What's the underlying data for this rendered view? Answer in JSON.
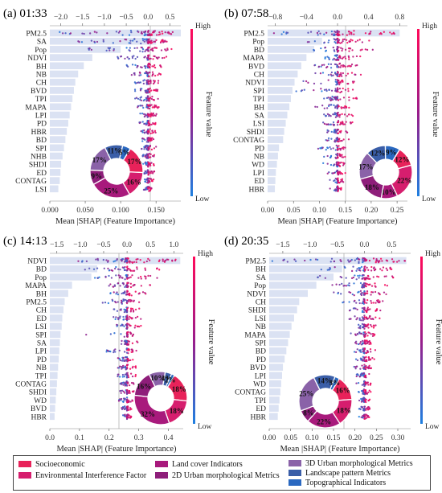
{
  "chart_data": [
    {
      "type": "shap-beeswarm-bar",
      "title": "(a) 01:33",
      "xlabel": "Mean |SHAP| (Feature Importance)",
      "bottom_ticks": [
        "0.000",
        "0.050",
        "0.100",
        "0.150"
      ],
      "bottom_range": [
        0,
        0.185
      ],
      "top_ticks": [
        "−2.0",
        "−1.5",
        "−1.0",
        "−0.5",
        "0.0",
        "0.5"
      ],
      "top_range": [
        -2.25,
        0.75
      ],
      "colorbar": {
        "high": "High",
        "low": "Low",
        "label": "Feature value"
      },
      "features": [
        "PM2.5",
        "SA",
        "Pop",
        "NDVI",
        "BH",
        "NB",
        "CH",
        "BVD",
        "TPI",
        "MAPA",
        "LPI",
        "PD",
        "HBR",
        "BD",
        "SPI",
        "NHB",
        "SHDI",
        "ED",
        "CONTAG",
        "LSI"
      ],
      "importance": [
        0.185,
        0.15,
        0.1,
        0.06,
        0.048,
        0.04,
        0.036,
        0.034,
        0.032,
        0.03,
        0.028,
        0.026,
        0.024,
        0.022,
        0.02,
        0.018,
        0.016,
        0.015,
        0.014,
        0.012
      ],
      "spread": [
        [
          -2.2,
          0.6
        ],
        [
          -1.6,
          0.45
        ],
        [
          -1.4,
          0.6
        ],
        [
          -0.7,
          0.45
        ],
        [
          -0.5,
          0.35
        ],
        [
          -0.4,
          0.3
        ],
        [
          -0.35,
          0.3
        ],
        [
          -0.3,
          0.25
        ],
        [
          -0.3,
          0.25
        ],
        [
          -0.25,
          0.25
        ],
        [
          -0.25,
          0.2
        ],
        [
          -0.2,
          0.2
        ],
        [
          -0.2,
          0.2
        ],
        [
          -0.2,
          0.2
        ],
        [
          -0.15,
          0.2
        ],
        [
          -0.15,
          0.15
        ],
        [
          -0.15,
          0.15
        ],
        [
          -0.1,
          0.15
        ],
        [
          -0.1,
          0.15
        ],
        [
          -0.1,
          0.1
        ]
      ],
      "donut": {
        "values": [
          17,
          16,
          25,
          9,
          17,
          11,
          5
        ],
        "labels": [
          "17%",
          "16%",
          "25%",
          "9%",
          "17%",
          "11%",
          "5%"
        ]
      }
    },
    {
      "type": "shap-beeswarm-bar",
      "title": "(b) 07:58",
      "xlabel": "Mean |SHAP| (Feature Importance)",
      "bottom_ticks": [
        "0.00",
        "0.05",
        "0.10",
        "0.15",
        "0.20",
        "0.25"
      ],
      "bottom_range": [
        0,
        0.27
      ],
      "top_ticks": [
        "−0.8",
        "−0.4",
        "0.0",
        "0.4",
        "0.8"
      ],
      "top_range": [
        -0.9,
        0.9
      ],
      "colorbar": {
        "high": "High",
        "low": "Low",
        "label": "Feature value"
      },
      "features": [
        "PM2.5",
        "Pop",
        "BD",
        "MAPA",
        "BVD",
        "CH",
        "NDVI",
        "SPI",
        "TPI",
        "BH",
        "SA",
        "LSI",
        "SHDI",
        "CONTAG",
        "PD",
        "NB",
        "WD",
        "LPI",
        "ED",
        "HBR"
      ],
      "importance": [
        0.255,
        0.105,
        0.09,
        0.075,
        0.065,
        0.058,
        0.052,
        0.048,
        0.045,
        0.042,
        0.038,
        0.035,
        0.032,
        0.03,
        0.022,
        0.02,
        0.018,
        0.016,
        0.015,
        0.014
      ],
      "spread": [
        [
          -0.85,
          0.8
        ],
        [
          -0.5,
          0.45
        ],
        [
          -0.35,
          0.5
        ],
        [
          -0.3,
          0.35
        ],
        [
          -0.3,
          0.3
        ],
        [
          -0.3,
          0.3
        ],
        [
          -0.45,
          0.25
        ],
        [
          -0.55,
          0.2
        ],
        [
          -0.2,
          0.25
        ],
        [
          -0.3,
          0.2
        ],
        [
          -0.2,
          0.2
        ],
        [
          -0.2,
          0.2
        ],
        [
          -0.15,
          0.15
        ],
        [
          -0.15,
          0.15
        ],
        [
          -0.35,
          0.15
        ],
        [
          -0.2,
          0.1
        ],
        [
          -0.2,
          0.1
        ],
        [
          -0.15,
          0.1
        ],
        [
          -0.1,
          0.1
        ],
        [
          -0.1,
          0.05
        ]
      ],
      "donut": {
        "values": [
          12,
          22,
          10,
          18,
          17,
          12,
          9
        ],
        "labels": [
          "12%",
          "22%",
          "10%",
          "18%",
          "17%",
          "12%",
          "9%"
        ]
      }
    },
    {
      "type": "shap-beeswarm-bar",
      "title": "(c) 14:13",
      "xlabel": "Mean |SHAP| (Feature Importance)",
      "bottom_ticks": [
        "0.0",
        "0.1",
        "0.2",
        "0.3",
        "0.4"
      ],
      "bottom_range": [
        0,
        0.45
      ],
      "top_ticks": [
        "−1.5",
        "−1.0",
        "−0.5",
        "0.0",
        "0.5",
        "1.0"
      ],
      "top_range": [
        -1.65,
        1.2
      ],
      "colorbar": {
        "high": "High",
        "low": "Low",
        "label": "Feature value"
      },
      "features": [
        "NDVI",
        "BD",
        "Pop",
        "MAPA",
        "BH",
        "PM2.5",
        "CH",
        "ED",
        "LSI",
        "SPI",
        "SA",
        "LPI",
        "PD",
        "NB",
        "TPI",
        "CONTAG",
        "SHDI",
        "WD",
        "BVD",
        "HBR"
      ],
      "importance": [
        0.44,
        0.16,
        0.14,
        0.075,
        0.062,
        0.05,
        0.046,
        0.042,
        0.04,
        0.036,
        0.034,
        0.032,
        0.03,
        0.028,
        0.026,
        0.024,
        0.022,
        0.02,
        0.018,
        0.016
      ],
      "spread": [
        [
          -1.1,
          1.1
        ],
        [
          -0.9,
          0.7
        ],
        [
          -0.9,
          0.7
        ],
        [
          -0.5,
          0.5
        ],
        [
          -0.4,
          0.4
        ],
        [
          -0.6,
          0.3
        ],
        [
          -0.3,
          0.3
        ],
        [
          -0.3,
          0.3
        ],
        [
          -0.3,
          0.3
        ],
        [
          -0.9,
          0.2
        ],
        [
          -0.25,
          0.25
        ],
        [
          -0.6,
          0.2
        ],
        [
          -0.2,
          0.2
        ],
        [
          -0.2,
          0.2
        ],
        [
          -0.2,
          0.2
        ],
        [
          -0.15,
          0.15
        ],
        [
          -0.15,
          0.15
        ],
        [
          -0.2,
          0.15
        ],
        [
          -0.15,
          0.1
        ],
        [
          -0.1,
          0.1
        ]
      ],
      "donut": {
        "values": [
          18,
          18,
          32,
          16,
          10,
          4,
          2
        ],
        "labels": [
          "18%",
          "18%",
          "32%",
          "16%",
          "10%",
          "4%",
          "2%"
        ]
      }
    },
    {
      "type": "shap-beeswarm-bar",
      "title": "(d) 20:35",
      "xlabel": "Mean |SHAP| (Feature Importance)",
      "bottom_ticks": [
        "0.00",
        "0.05",
        "0.10",
        "0.15",
        "0.20",
        "0.25",
        "0.30"
      ],
      "bottom_range": [
        0,
        0.33
      ],
      "top_ticks": [
        "−1.5",
        "−1.0",
        "−0.5",
        "0.0",
        "0.5"
      ],
      "top_range": [
        -1.75,
        0.85
      ],
      "colorbar": {
        "high": "High",
        "low": "Low",
        "label": "Feature value"
      },
      "features": [
        "PM2.5",
        "BH",
        "SA",
        "Pop",
        "NDVI",
        "CH",
        "SHDI",
        "LSI",
        "NB",
        "MAPA",
        "SPI",
        "BD",
        "PD",
        "BVD",
        "LPI",
        "WD",
        "CONTAG",
        "TPI",
        "ED",
        "HBR"
      ],
      "importance": [
        0.32,
        0.17,
        0.15,
        0.11,
        0.09,
        0.07,
        0.065,
        0.058,
        0.052,
        0.048,
        0.044,
        0.04,
        0.036,
        0.032,
        0.03,
        0.028,
        0.026,
        0.024,
        0.022,
        0.02
      ],
      "spread": [
        [
          -1.7,
          0.75
        ],
        [
          -0.9,
          0.6
        ],
        [
          -0.9,
          0.55
        ],
        [
          -0.7,
          0.5
        ],
        [
          -0.6,
          0.4
        ],
        [
          -0.4,
          0.35
        ],
        [
          -0.3,
          0.3
        ],
        [
          -0.3,
          0.3
        ],
        [
          -0.3,
          0.25
        ],
        [
          -0.25,
          0.25
        ],
        [
          -0.2,
          0.2
        ],
        [
          -0.2,
          0.2
        ],
        [
          -0.2,
          0.2
        ],
        [
          -0.2,
          0.15
        ],
        [
          -0.15,
          0.15
        ],
        [
          -0.15,
          0.15
        ],
        [
          -0.15,
          0.15
        ],
        [
          -0.1,
          0.1
        ],
        [
          -0.1,
          0.1
        ],
        [
          -0.1,
          0.1
        ]
      ],
      "donut": {
        "values": [
          16,
          18,
          22,
          8,
          25,
          14,
          3
        ],
        "labels": [
          "16%",
          "18%",
          "22%",
          "8%",
          "25%",
          "14%",
          "3%"
        ]
      }
    }
  ],
  "legend": {
    "items": [
      {
        "label": "Socioeconomic",
        "color": "#e8225a"
      },
      {
        "label": "Environmental Interference Factor",
        "color": "#d61e6e"
      },
      {
        "label": "Land cover Indicators",
        "color": "#a81a7c"
      },
      {
        "label": "2D Urban morphological Metrics",
        "color": "#8e1e7a"
      },
      {
        "label": "3D Urban morphological Metrics",
        "color": "#8a62a8"
      },
      {
        "label": "Landscape pattern Metrics",
        "color": "#3a5ea8"
      },
      {
        "label": "Topographical Indicators",
        "color": "#2a68c0"
      }
    ]
  },
  "donut_colors": [
    "#e8225a",
    "#d61e6e",
    "#a81a7c",
    "#8e1e7a",
    "#8a62a8",
    "#3a5ea8",
    "#2a68c0"
  ],
  "bar_color": "#dbe2f3"
}
